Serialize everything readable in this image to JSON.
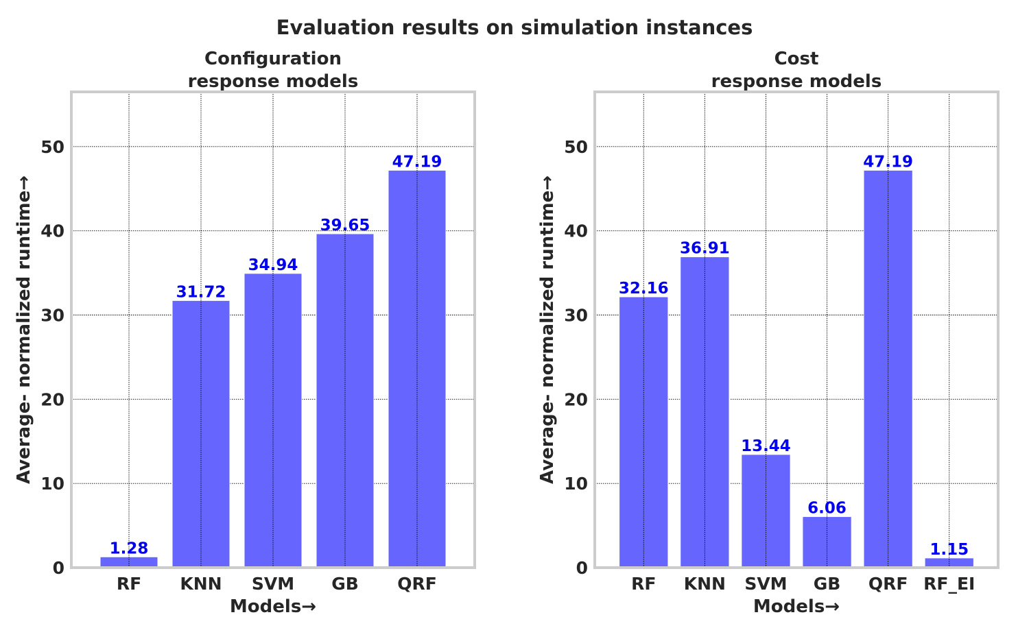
{
  "title": "Evaluation results on simulation instances",
  "chart_data": [
    {
      "type": "bar",
      "title_lines": [
        "Configuration",
        "response models"
      ],
      "xlabel": "Models→",
      "ylabel": "Average- normalized runtime→",
      "categories": [
        "RF",
        "KNN",
        "SVM",
        "GB",
        "QRF"
      ],
      "values": [
        1.28,
        31.72,
        34.94,
        39.65,
        47.19
      ],
      "value_labels": [
        "1.28",
        "31.72",
        "34.94",
        "39.65",
        "47.19"
      ],
      "ylim": [
        0,
        56.5
      ],
      "yticks": [
        0,
        10,
        20,
        30,
        40,
        50
      ],
      "grid": true,
      "bar_color": "#6666ff",
      "label_color": "#0000ee"
    },
    {
      "type": "bar",
      "title_lines": [
        "Cost",
        "response models"
      ],
      "xlabel": "Models→",
      "ylabel": "Average- normalized runtime→",
      "categories": [
        "RF",
        "KNN",
        "SVM",
        "GB",
        "QRF",
        "RF_EI"
      ],
      "values": [
        32.16,
        36.91,
        13.44,
        6.06,
        47.19,
        1.15
      ],
      "value_labels": [
        "32.16",
        "36.91",
        "13.44",
        "6.06",
        "47.19",
        "1.15"
      ],
      "ylim": [
        0,
        56.5
      ],
      "yticks": [
        0,
        10,
        20,
        30,
        40,
        50
      ],
      "grid": true,
      "bar_color": "#6666ff",
      "label_color": "#0000ee"
    }
  ]
}
